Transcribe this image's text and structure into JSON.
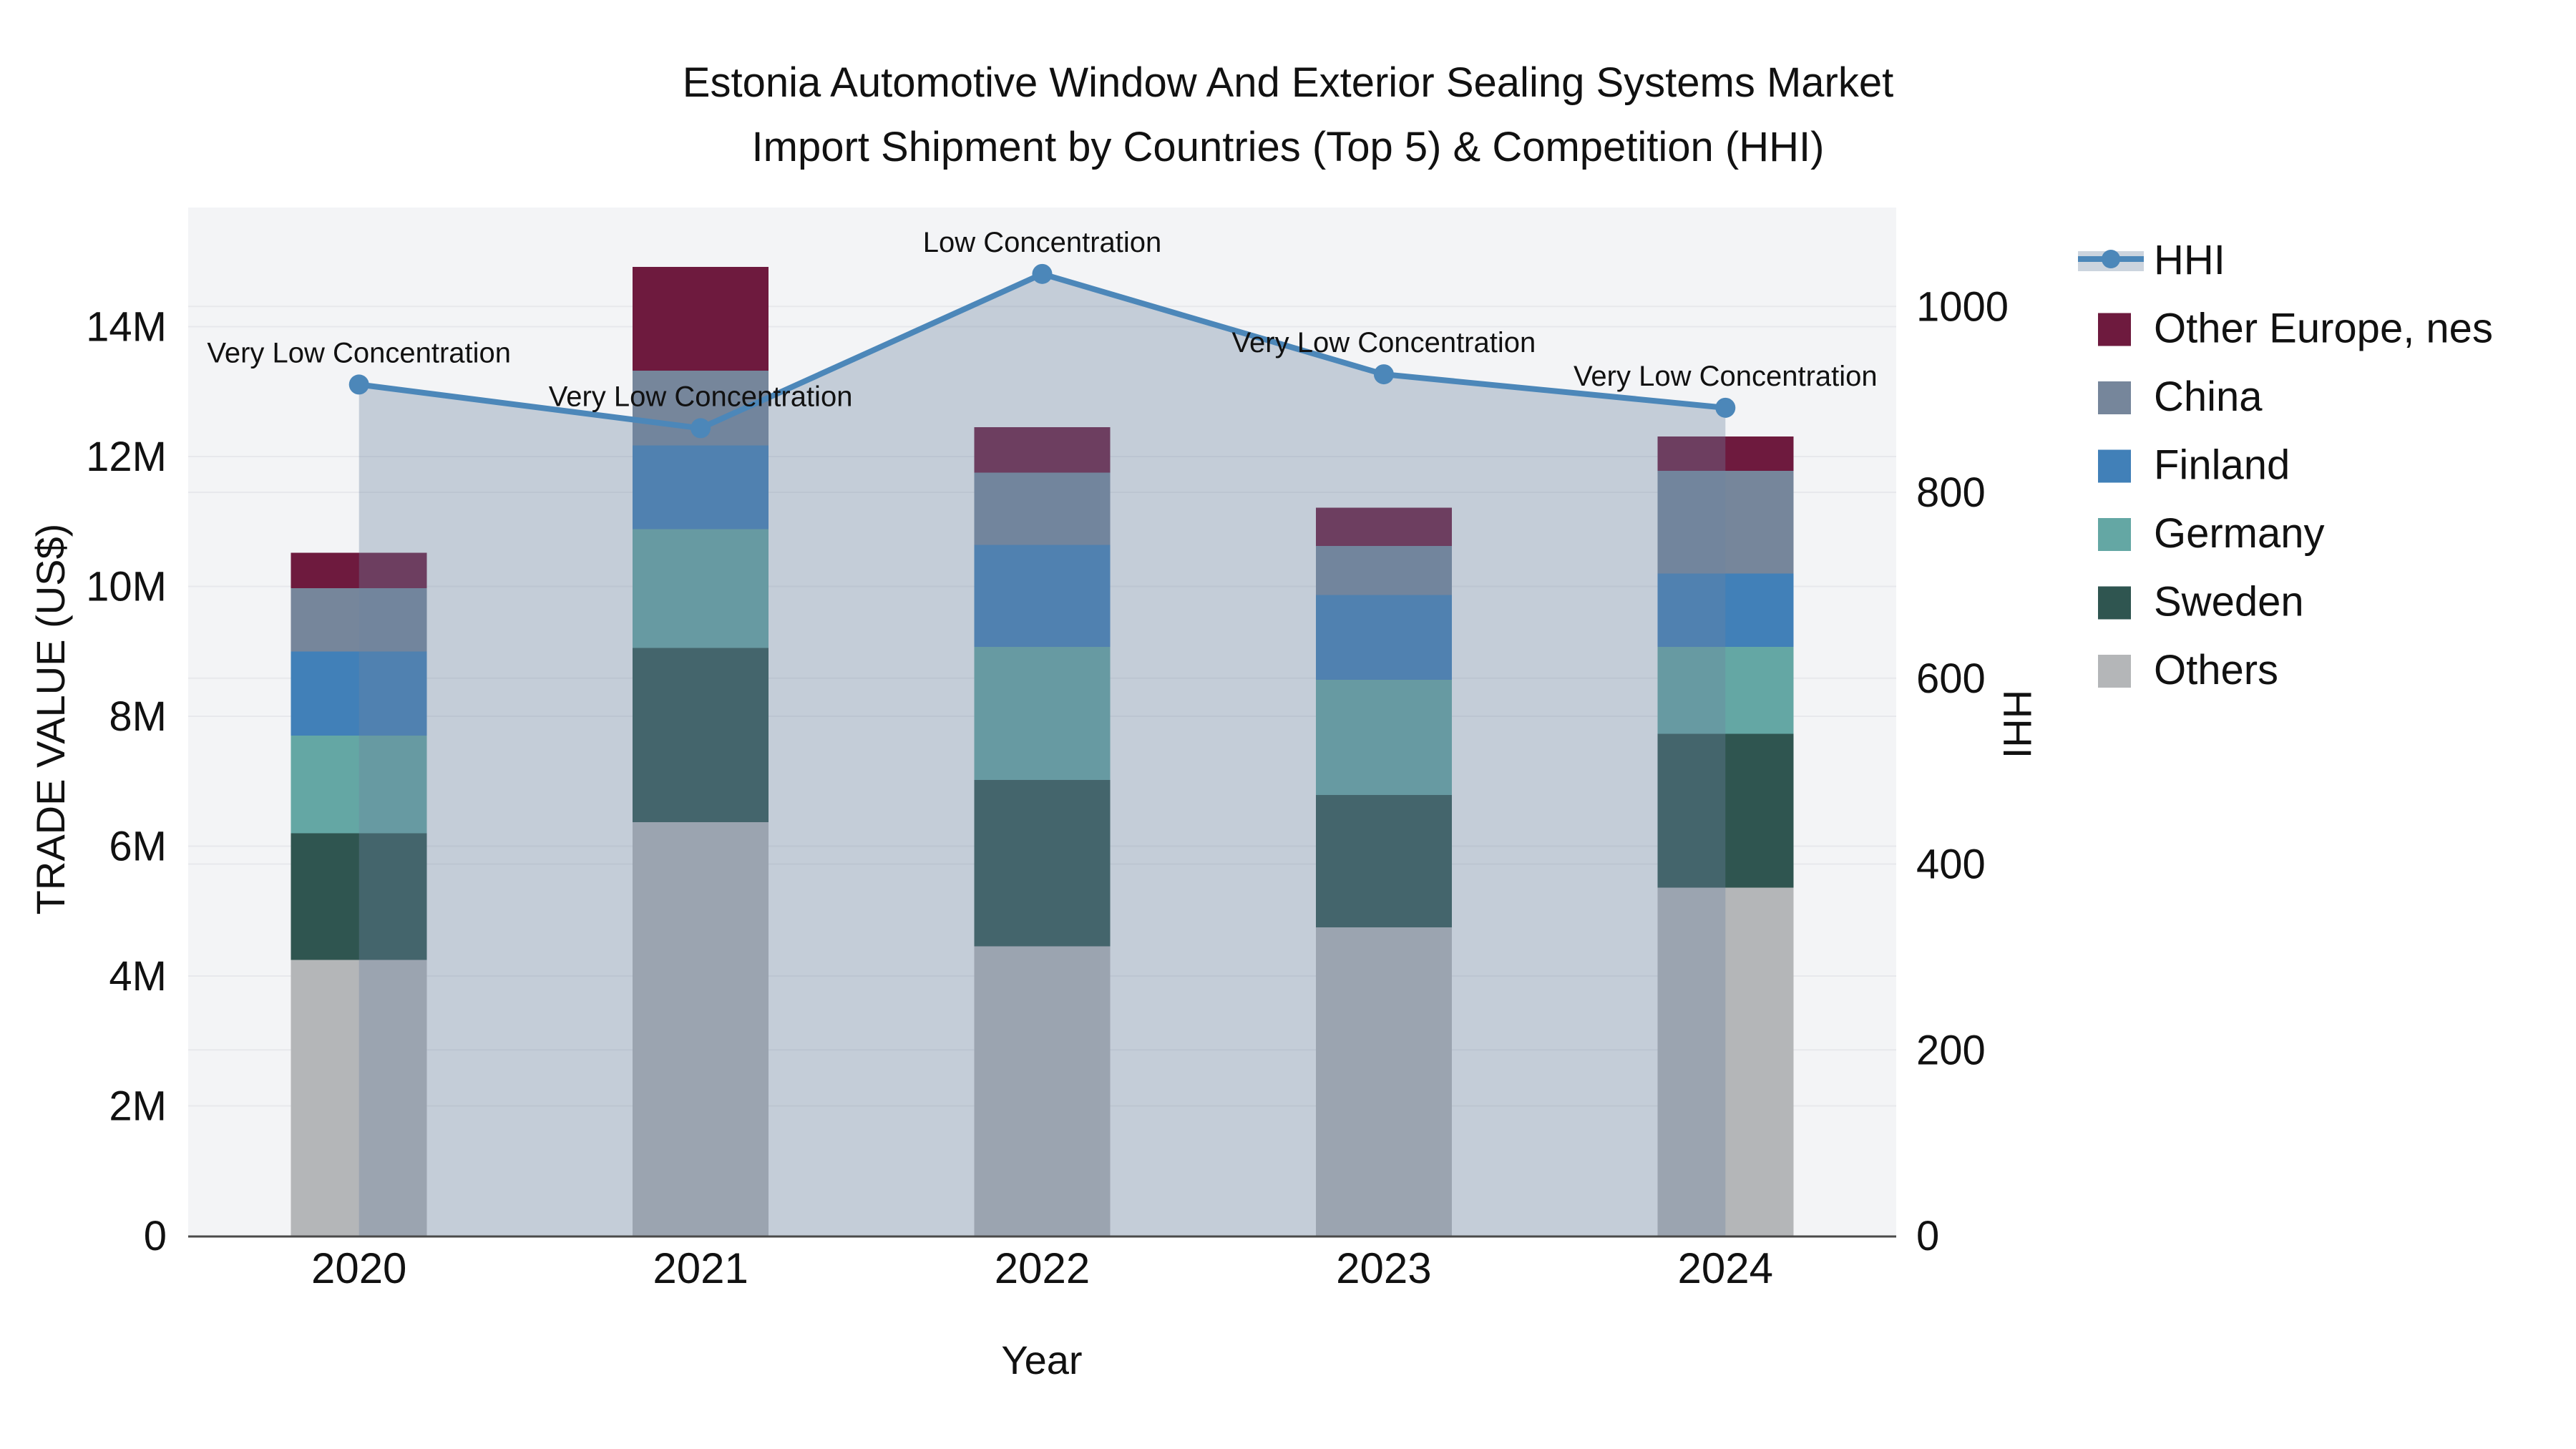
{
  "title": {
    "line1": "Estonia Automotive Window And Exterior Sealing Systems Market",
    "line2": "Import Shipment by Countries (Top 5) & Competition (HHI)"
  },
  "axes": {
    "x": {
      "title": "Year",
      "ticks": [
        "2020",
        "2021",
        "2022",
        "2023",
        "2024"
      ]
    },
    "y_left": {
      "title": "TRADE VALUE (US$)",
      "ticks": [
        "0",
        "2M",
        "4M",
        "6M",
        "8M",
        "10M",
        "12M",
        "14M"
      ]
    },
    "y_right": {
      "title": "HHI",
      "ticks": [
        "0",
        "200",
        "400",
        "600",
        "800",
        "1000"
      ]
    }
  },
  "legend": {
    "items": [
      "HHI",
      "Other Europe, nes",
      "China",
      "Finland",
      "Germany",
      "Sweden",
      "Others"
    ]
  },
  "colors": {
    "hhi_line": "#4C87B9",
    "area_fill": "#6E84A0",
    "area_fill_alpha": 0.35,
    "plot_background": "#F3F4F6",
    "gridline": "#E7E8EC",
    "axis_line": "#4A4A4A"
  },
  "chart_data": {
    "type": "bar+line",
    "categories": [
      "2020",
      "2021",
      "2022",
      "2023",
      "2024"
    ],
    "values_unit": "million US$",
    "stack_order_bottom_to_top": [
      "Others",
      "Sweden",
      "Germany",
      "Finland",
      "China",
      "Other Europe, nes"
    ],
    "series": [
      {
        "name": "Other Europe, nes",
        "color": "#6E1A3E",
        "values": [
          0.55,
          1.6,
          0.7,
          0.59,
          0.53
        ]
      },
      {
        "name": "China",
        "color": "#76869B",
        "values": [
          0.97,
          1.15,
          1.11,
          0.75,
          1.58
        ]
      },
      {
        "name": "Finland",
        "color": "#4180B8",
        "values": [
          1.3,
          1.29,
          1.57,
          1.31,
          1.13
        ]
      },
      {
        "name": "Germany",
        "color": "#64A7A4",
        "values": [
          1.5,
          1.83,
          2.05,
          1.77,
          1.34
        ]
      },
      {
        "name": "Sweden",
        "color": "#2F5550",
        "values": [
          1.95,
          2.68,
          2.56,
          2.04,
          2.37
        ]
      },
      {
        "name": "Others",
        "color": "#B4B6B8",
        "values": [
          4.25,
          6.37,
          4.46,
          4.75,
          5.36
        ]
      }
    ],
    "bar_totals": [
      10.52,
      14.92,
      12.45,
      11.21,
      12.31
    ],
    "hhi": {
      "name": "HHI",
      "color": "#4C87B9",
      "values": [
        916,
        869,
        1035,
        927,
        891
      ]
    },
    "annotations": [
      "Very Low Concentration",
      "Very Low Concentration",
      "Low Concentration",
      "Very Low Concentration",
      "Very Low Concentration"
    ],
    "xlabel": "Year",
    "ylabel_left": "TRADE VALUE (US$)",
    "ylabel_right": "HHI",
    "y_left_range": [
      0,
      15.8
    ],
    "y_right_range": [
      0,
      1106
    ],
    "grid": true,
    "legend_position": "right"
  }
}
